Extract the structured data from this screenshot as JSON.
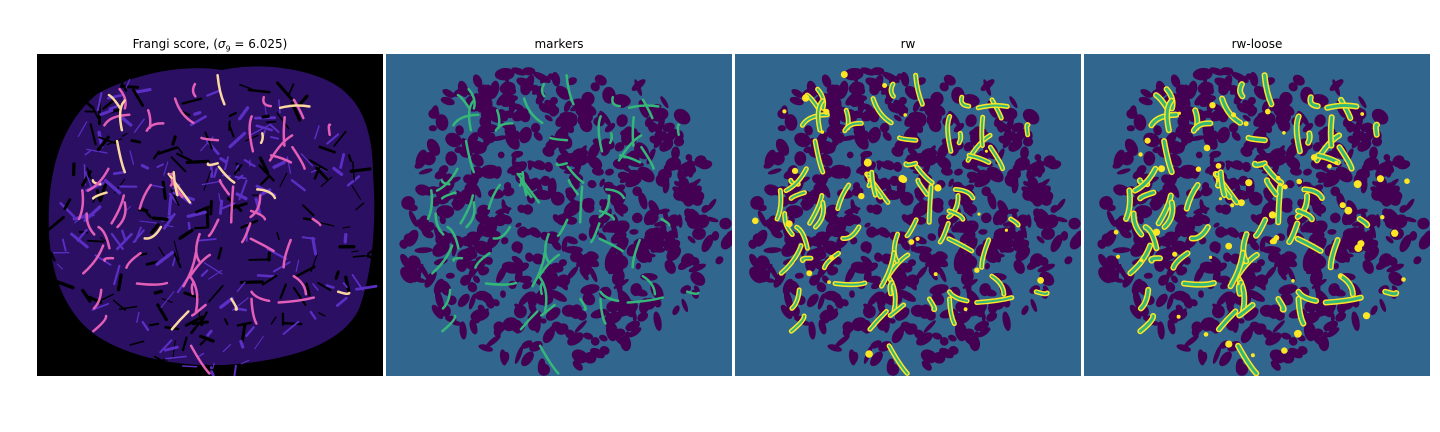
{
  "figure": {
    "panels": [
      {
        "id": "frangi",
        "title_prefix": "Frangi score, (",
        "title_symbol": "σ",
        "title_sub": "9",
        "title_suffix": " = 6.025)",
        "colormap": "magma"
      },
      {
        "id": "markers",
        "title": "markers",
        "colormap": "viridis"
      },
      {
        "id": "rw",
        "title": "rw",
        "colormap": "viridis"
      },
      {
        "id": "rw-loose",
        "title": "rw-loose",
        "colormap": "viridis"
      }
    ]
  },
  "colors": {
    "black": "#000000",
    "magma_dark": "#2a0f63",
    "magma_mid": "#5b2fc4",
    "magma_hi": "#e35fb7",
    "magma_peak": "#fcd7a0",
    "viridis_bg": "#31668e",
    "viridis_dark": "#440154",
    "viridis_green": "#35b779",
    "viridis_yellow": "#fde725"
  }
}
